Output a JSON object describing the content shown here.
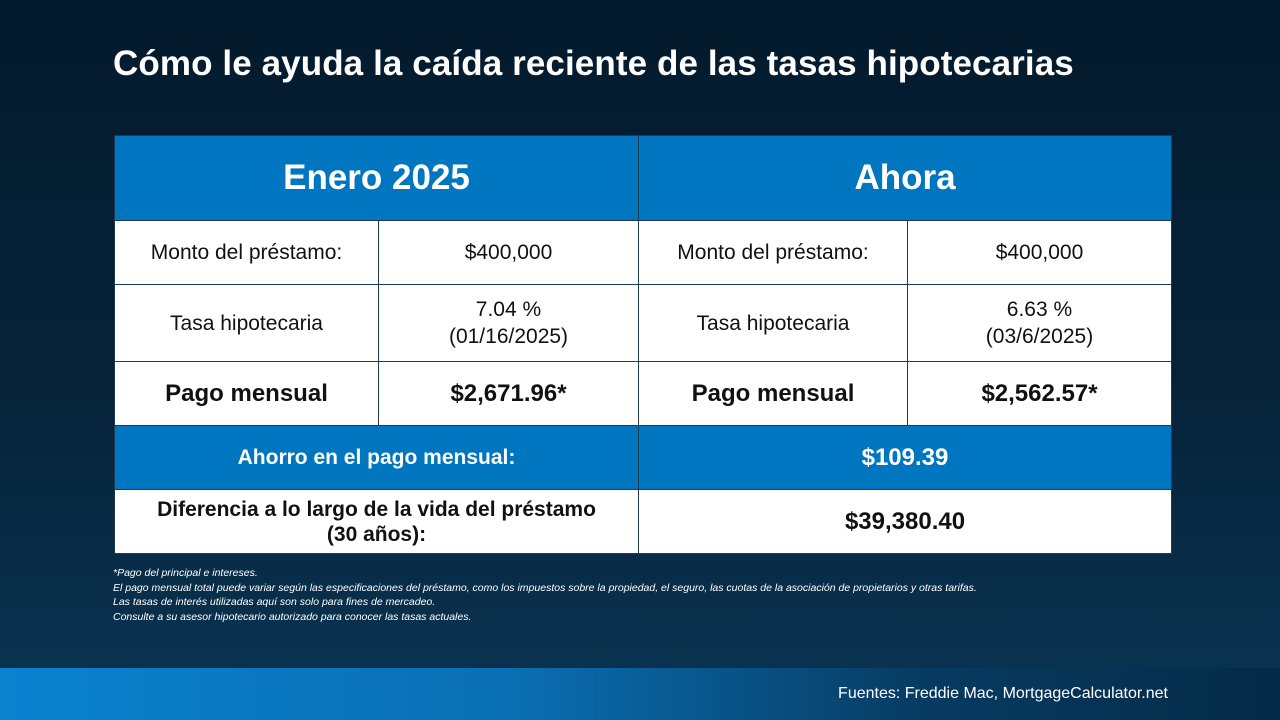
{
  "title": "Cómo le ayuda la caída reciente de las tasas hipotecarias",
  "table": {
    "headers": [
      "Enero 2025",
      "Ahora"
    ],
    "january": {
      "loan_label": "Monto del préstamo:",
      "loan_value": "$400,000",
      "rate_label": "Tasa hipotecaria",
      "rate_value": "7.04 %",
      "rate_date": "(01/16/2025)",
      "payment_label": "Pago mensual",
      "payment_value": "$2,671.96*"
    },
    "now": {
      "loan_label": "Monto del préstamo:",
      "loan_value": "$400,000",
      "rate_label": "Tasa hipotecaria",
      "rate_value": "6.63 %",
      "rate_date": "(03/6/2025)",
      "payment_label": "Pago mensual",
      "payment_value": "$2,562.57*"
    },
    "savings_label": "Ahorro en el pago mensual:",
    "savings_value": "$109.39",
    "lifetime_label_line1": "Diferencia a lo largo de la vida del préstamo",
    "lifetime_label_line2": "(30 años):",
    "lifetime_value": "$39,380.40"
  },
  "notes": [
    "*Pago del principal e intereses.",
    "El pago mensual total puede variar según las especificaciones del préstamo, como los impuestos sobre la propiedad, el seguro, las cuotas de la asociación de propietarios y otras tarifas.",
    "Las tasas de interés utilizadas aquí son solo para fines de mercadeo.",
    "Consulte a su asesor hipotecario autorizado para conocer las tasas actuales."
  ],
  "sources": "Fuentes: Freddie Mac, MortgageCalculator.net",
  "colors": {
    "accent_blue": "#0076c0",
    "background_dark": "#031a2c"
  }
}
